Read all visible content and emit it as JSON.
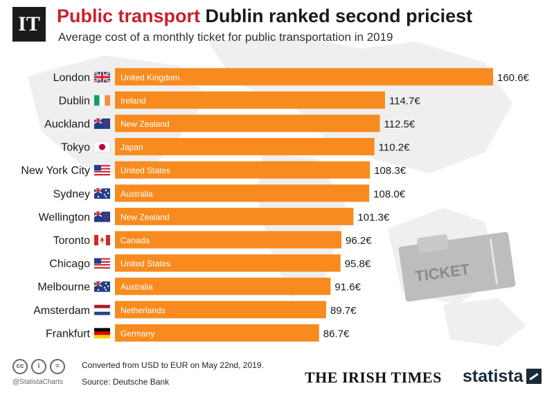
{
  "header": {
    "logo_text": "IT",
    "title_accent": "Public transport",
    "title_rest": "Dublin ranked second priciest",
    "subtitle": "Average cost of a monthly ticket for public transportation in 2019"
  },
  "ticket_graphic": {
    "text": "TICKET"
  },
  "colors": {
    "bar": "#f78b1f",
    "accent": "#c8202e",
    "map": "#ebebeb"
  },
  "chart_data": {
    "type": "bar",
    "orientation": "horizontal",
    "title": "Public transport Dublin ranked second priciest",
    "subtitle": "Average cost of a monthly ticket for public transportation in 2019",
    "unit": "€",
    "categories": [
      "London",
      "Dublin",
      "Auckland",
      "Tokyo",
      "New York City",
      "Sydney",
      "Wellington",
      "Toronto",
      "Chicago",
      "Melbourne",
      "Amsterdam",
      "Frankfurt"
    ],
    "countries": [
      "United Kingdom",
      "Ireland",
      "New Zealand",
      "Japan",
      "United States",
      "Australia",
      "New Zealand",
      "Canada",
      "United States",
      "Australia",
      "Netherlands",
      "Germany"
    ],
    "flags": [
      "uk-flag",
      "ireland-flag",
      "new-zealand-flag",
      "japan-flag",
      "usa-flag",
      "australia-flag",
      "new-zealand-flag",
      "canada-flag",
      "usa-flag",
      "australia-flag",
      "netherlands-flag",
      "germany-flag"
    ],
    "values": [
      160.6,
      114.7,
      112.5,
      110.2,
      108.3,
      108.0,
      101.3,
      96.2,
      95.8,
      91.6,
      89.7,
      86.7
    ],
    "value_labels": [
      "160.6€",
      "114.7€",
      "112.5€",
      "110.2€",
      "108.3€",
      "108.0€",
      "101.3€",
      "96.2€",
      "95.8€",
      "91.6€",
      "89.7€",
      "86.7€"
    ],
    "xlim": [
      0,
      160.6
    ],
    "grid": false,
    "legend": "none"
  },
  "footer": {
    "cc_icons": [
      "cc",
      "i",
      "="
    ],
    "handle": "@StatistaCharts",
    "note": "Converted from USD to EUR on May 22nd, 2019.",
    "source": "Source: Deutsche Bank",
    "irish_times": "THE IRISH TIMES",
    "statista": "statista"
  }
}
